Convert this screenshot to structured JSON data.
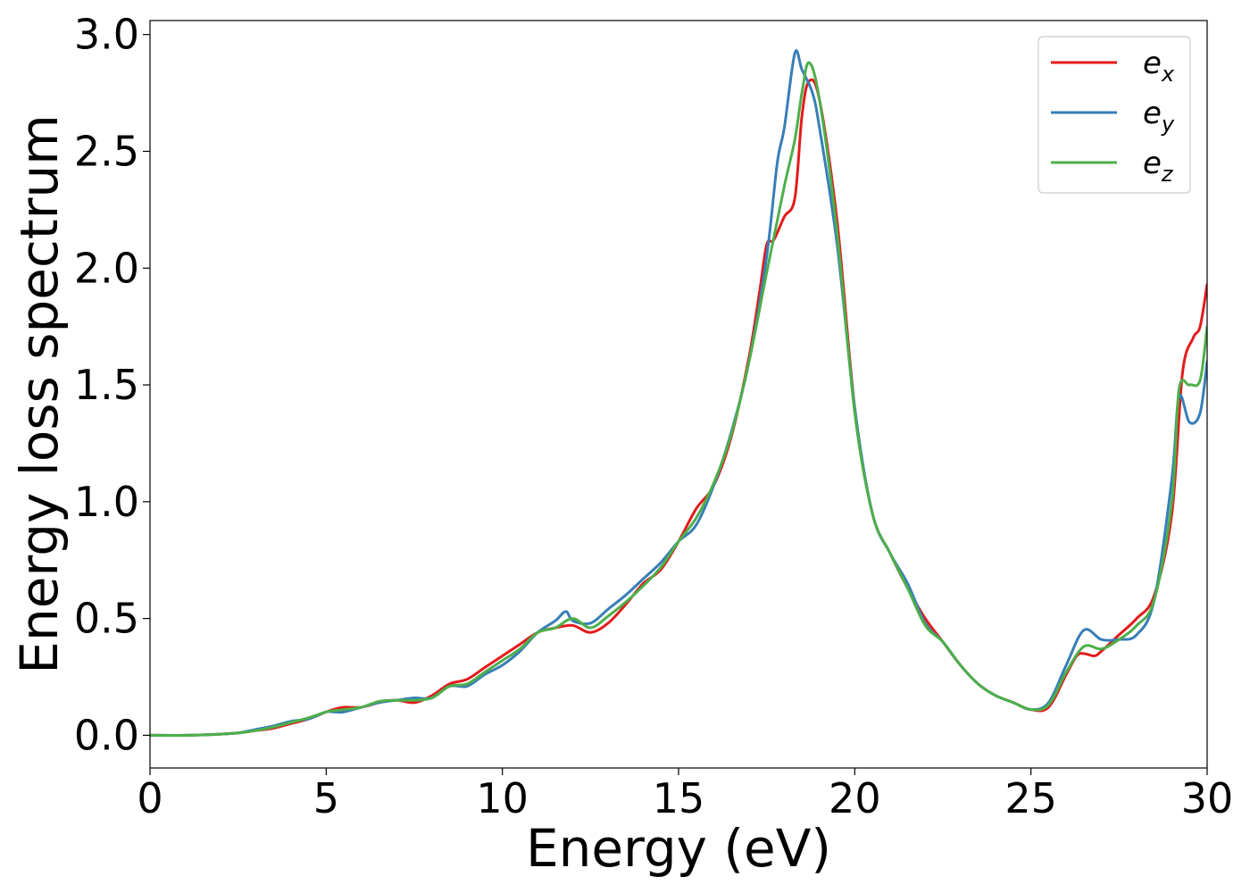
{
  "chart_data": {
    "type": "line",
    "title": "",
    "xlabel": "Energy (eV)",
    "ylabel": "Energy loss spectrum",
    "xlim": [
      0,
      30
    ],
    "ylim": [
      -0.14,
      3.06
    ],
    "xticks": [
      0,
      5,
      10,
      15,
      20,
      25,
      30
    ],
    "xtick_labels": [
      "0",
      "5",
      "10",
      "15",
      "20",
      "25",
      "30"
    ],
    "yticks": [
      0.0,
      0.5,
      1.0,
      1.5,
      2.0,
      2.5,
      3.0
    ],
    "ytick_labels": [
      "0.0",
      "0.5",
      "1.0",
      "1.5",
      "2.0",
      "2.5",
      "3.0"
    ],
    "grid": false,
    "legend_position": "top-right",
    "series": [
      {
        "name": "e_x",
        "base": "e",
        "sub": "x",
        "color": "#e41a1c",
        "x": [
          0,
          1,
          2,
          2.5,
          3,
          3.5,
          4,
          4.5,
          5,
          5.2,
          5.5,
          6,
          6.5,
          7,
          7.5,
          8,
          8.5,
          9,
          9.5,
          10,
          10.5,
          11,
          11.5,
          12,
          12.5,
          13,
          13.5,
          14,
          14.5,
          15,
          15.5,
          16,
          16.5,
          17,
          17.3,
          17.5,
          17.7,
          18,
          18.3,
          18.5,
          18.7,
          19,
          19.5,
          20,
          20.5,
          21,
          21.5,
          22,
          22.5,
          23,
          23.5,
          24,
          24.5,
          25,
          25.5,
          26,
          26.3,
          26.5,
          26.8,
          27,
          27.5,
          28,
          28.5,
          29,
          29.3,
          29.6,
          29.8,
          30
        ],
        "values": [
          0,
          0,
          0.005,
          0.01,
          0.02,
          0.03,
          0.05,
          0.07,
          0.1,
          0.11,
          0.12,
          0.12,
          0.14,
          0.15,
          0.14,
          0.17,
          0.22,
          0.24,
          0.29,
          0.34,
          0.39,
          0.44,
          0.46,
          0.47,
          0.44,
          0.48,
          0.56,
          0.65,
          0.71,
          0.83,
          0.97,
          1.07,
          1.28,
          1.62,
          1.9,
          2.1,
          2.12,
          2.22,
          2.3,
          2.65,
          2.8,
          2.72,
          2.2,
          1.4,
          0.95,
          0.78,
          0.63,
          0.5,
          0.4,
          0.3,
          0.22,
          0.17,
          0.14,
          0.11,
          0.12,
          0.26,
          0.34,
          0.35,
          0.34,
          0.36,
          0.43,
          0.5,
          0.6,
          0.95,
          1.55,
          1.7,
          1.75,
          1.93
        ]
      },
      {
        "name": "e_y",
        "base": "e",
        "sub": "y",
        "color": "#377eb8",
        "x": [
          0,
          1,
          2,
          2.5,
          3,
          3.5,
          4,
          4.5,
          5,
          5.2,
          5.5,
          6,
          6.5,
          7,
          7.5,
          8,
          8.5,
          9,
          9.5,
          10,
          10.5,
          11,
          11.5,
          11.8,
          12,
          12.5,
          13,
          13.5,
          14,
          14.5,
          15,
          15.5,
          16,
          16.5,
          17,
          17.5,
          17.8,
          18,
          18.3,
          18.5,
          18.8,
          19,
          19.5,
          20,
          20.5,
          21,
          21.5,
          22,
          22.5,
          23,
          23.5,
          24,
          24.5,
          25,
          25.5,
          26,
          26.5,
          27,
          27.5,
          28,
          28.5,
          29,
          29.2,
          29.5,
          29.8,
          30
        ],
        "values": [
          0,
          0,
          0.005,
          0.01,
          0.025,
          0.04,
          0.06,
          0.07,
          0.1,
          0.1,
          0.1,
          0.12,
          0.14,
          0.15,
          0.16,
          0.16,
          0.21,
          0.21,
          0.26,
          0.3,
          0.36,
          0.44,
          0.49,
          0.53,
          0.49,
          0.48,
          0.54,
          0.6,
          0.67,
          0.74,
          0.83,
          0.9,
          1.07,
          1.3,
          1.6,
          2.05,
          2.45,
          2.6,
          2.92,
          2.85,
          2.75,
          2.6,
          2.1,
          1.4,
          0.95,
          0.78,
          0.65,
          0.48,
          0.4,
          0.3,
          0.22,
          0.17,
          0.14,
          0.11,
          0.14,
          0.3,
          0.45,
          0.41,
          0.41,
          0.43,
          0.58,
          1.1,
          1.45,
          1.34,
          1.38,
          1.6
        ]
      },
      {
        "name": "e_z",
        "base": "e",
        "sub": "z",
        "color": "#4daf4a",
        "x": [
          0,
          1,
          2,
          2.5,
          3,
          3.5,
          4,
          4.5,
          5,
          5.2,
          5.5,
          6,
          6.5,
          7,
          7.5,
          8,
          8.5,
          9,
          9.5,
          10,
          10.5,
          11,
          11.5,
          12,
          12.5,
          13,
          13.5,
          14,
          14.5,
          15,
          15.5,
          16,
          16.5,
          17,
          17.5,
          18,
          18.3,
          18.5,
          18.7,
          19,
          19.5,
          20,
          20.5,
          21,
          21.5,
          22,
          22.5,
          23,
          23.5,
          24,
          24.5,
          25,
          25.5,
          26,
          26.5,
          27,
          27.5,
          28,
          28.5,
          29,
          29.2,
          29.5,
          29.8,
          30
        ],
        "values": [
          0,
          0,
          0.005,
          0.01,
          0.02,
          0.035,
          0.055,
          0.075,
          0.1,
          0.105,
          0.11,
          0.12,
          0.145,
          0.15,
          0.15,
          0.16,
          0.21,
          0.22,
          0.27,
          0.32,
          0.37,
          0.44,
          0.46,
          0.5,
          0.46,
          0.51,
          0.57,
          0.64,
          0.72,
          0.83,
          0.93,
          1.08,
          1.29,
          1.6,
          1.98,
          2.35,
          2.55,
          2.75,
          2.88,
          2.72,
          2.15,
          1.38,
          0.95,
          0.78,
          0.63,
          0.47,
          0.4,
          0.3,
          0.22,
          0.17,
          0.14,
          0.11,
          0.13,
          0.27,
          0.38,
          0.37,
          0.41,
          0.47,
          0.58,
          1.0,
          1.48,
          1.5,
          1.52,
          1.75
        ]
      }
    ]
  }
}
